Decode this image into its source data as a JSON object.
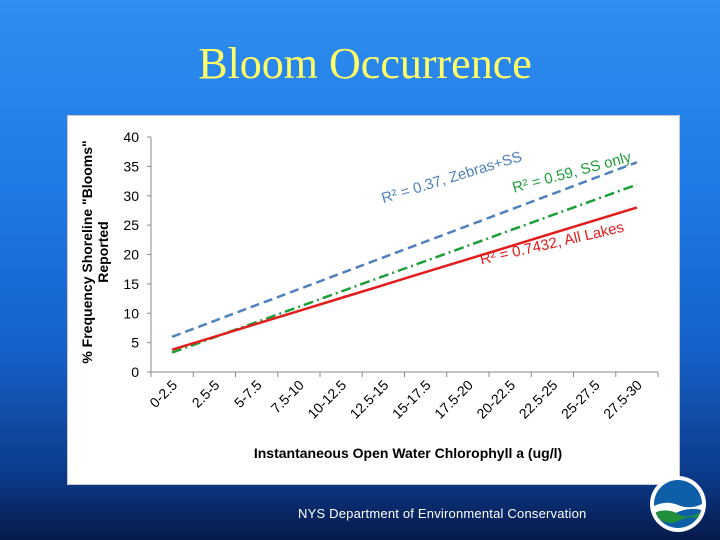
{
  "slide": {
    "title": "Bloom Occurrence",
    "footer": "NYS Department of Environmental  Conservation"
  },
  "colors": {
    "title": "#ffff66",
    "series_zebras_ss": "#4f81bd",
    "series_ss_only": "#1e9e3a",
    "series_all_lakes": "#e31c1c"
  },
  "icons": {
    "logo": "nys-dec-logo-icon"
  },
  "chart_data": {
    "type": "line",
    "title": "",
    "xlabel": "Instantaneous  Open Water Chlorophyll  a (ug/l)",
    "ylabel": "% Frequency Shoreline \"Blooms\" Reported",
    "ylabel_lines": [
      "% Frequency Shoreline \"Blooms\"",
      "Reported"
    ],
    "categories": [
      "0-2.5",
      "2.5-5",
      "5-7.5",
      "7.5-10",
      "10-12.5",
      "12.5-15",
      "15-17.5",
      "17.5-20",
      "20-22.5",
      "22.5-25",
      "25-27.5",
      "27.5-30"
    ],
    "ylim": [
      0,
      40
    ],
    "yticks": [
      0,
      5,
      10,
      15,
      20,
      25,
      30,
      35,
      40
    ],
    "grid": false,
    "series": [
      {
        "annotation": "R² = 0.37, Zebras+SS",
        "style": "dashed",
        "values": [
          6,
          8.7,
          11.4,
          14.1,
          16.8,
          19.5,
          22.2,
          24.9,
          27.6,
          30.3,
          33,
          35.7
        ]
      },
      {
        "annotation": "R² = 0.59, SS only",
        "style": "dash-dot",
        "values": [
          3.3,
          5.9,
          8.5,
          11.1,
          13.7,
          16.3,
          18.9,
          21.5,
          24.1,
          26.7,
          29.3,
          31.9
        ]
      },
      {
        "annotation": "R² = 0.7432, All Lakes",
        "style": "solid",
        "values": [
          3.8,
          6.0,
          8.2,
          10.4,
          12.6,
          14.8,
          17.0,
          19.2,
          21.4,
          23.6,
          25.8,
          28.0
        ]
      }
    ]
  }
}
